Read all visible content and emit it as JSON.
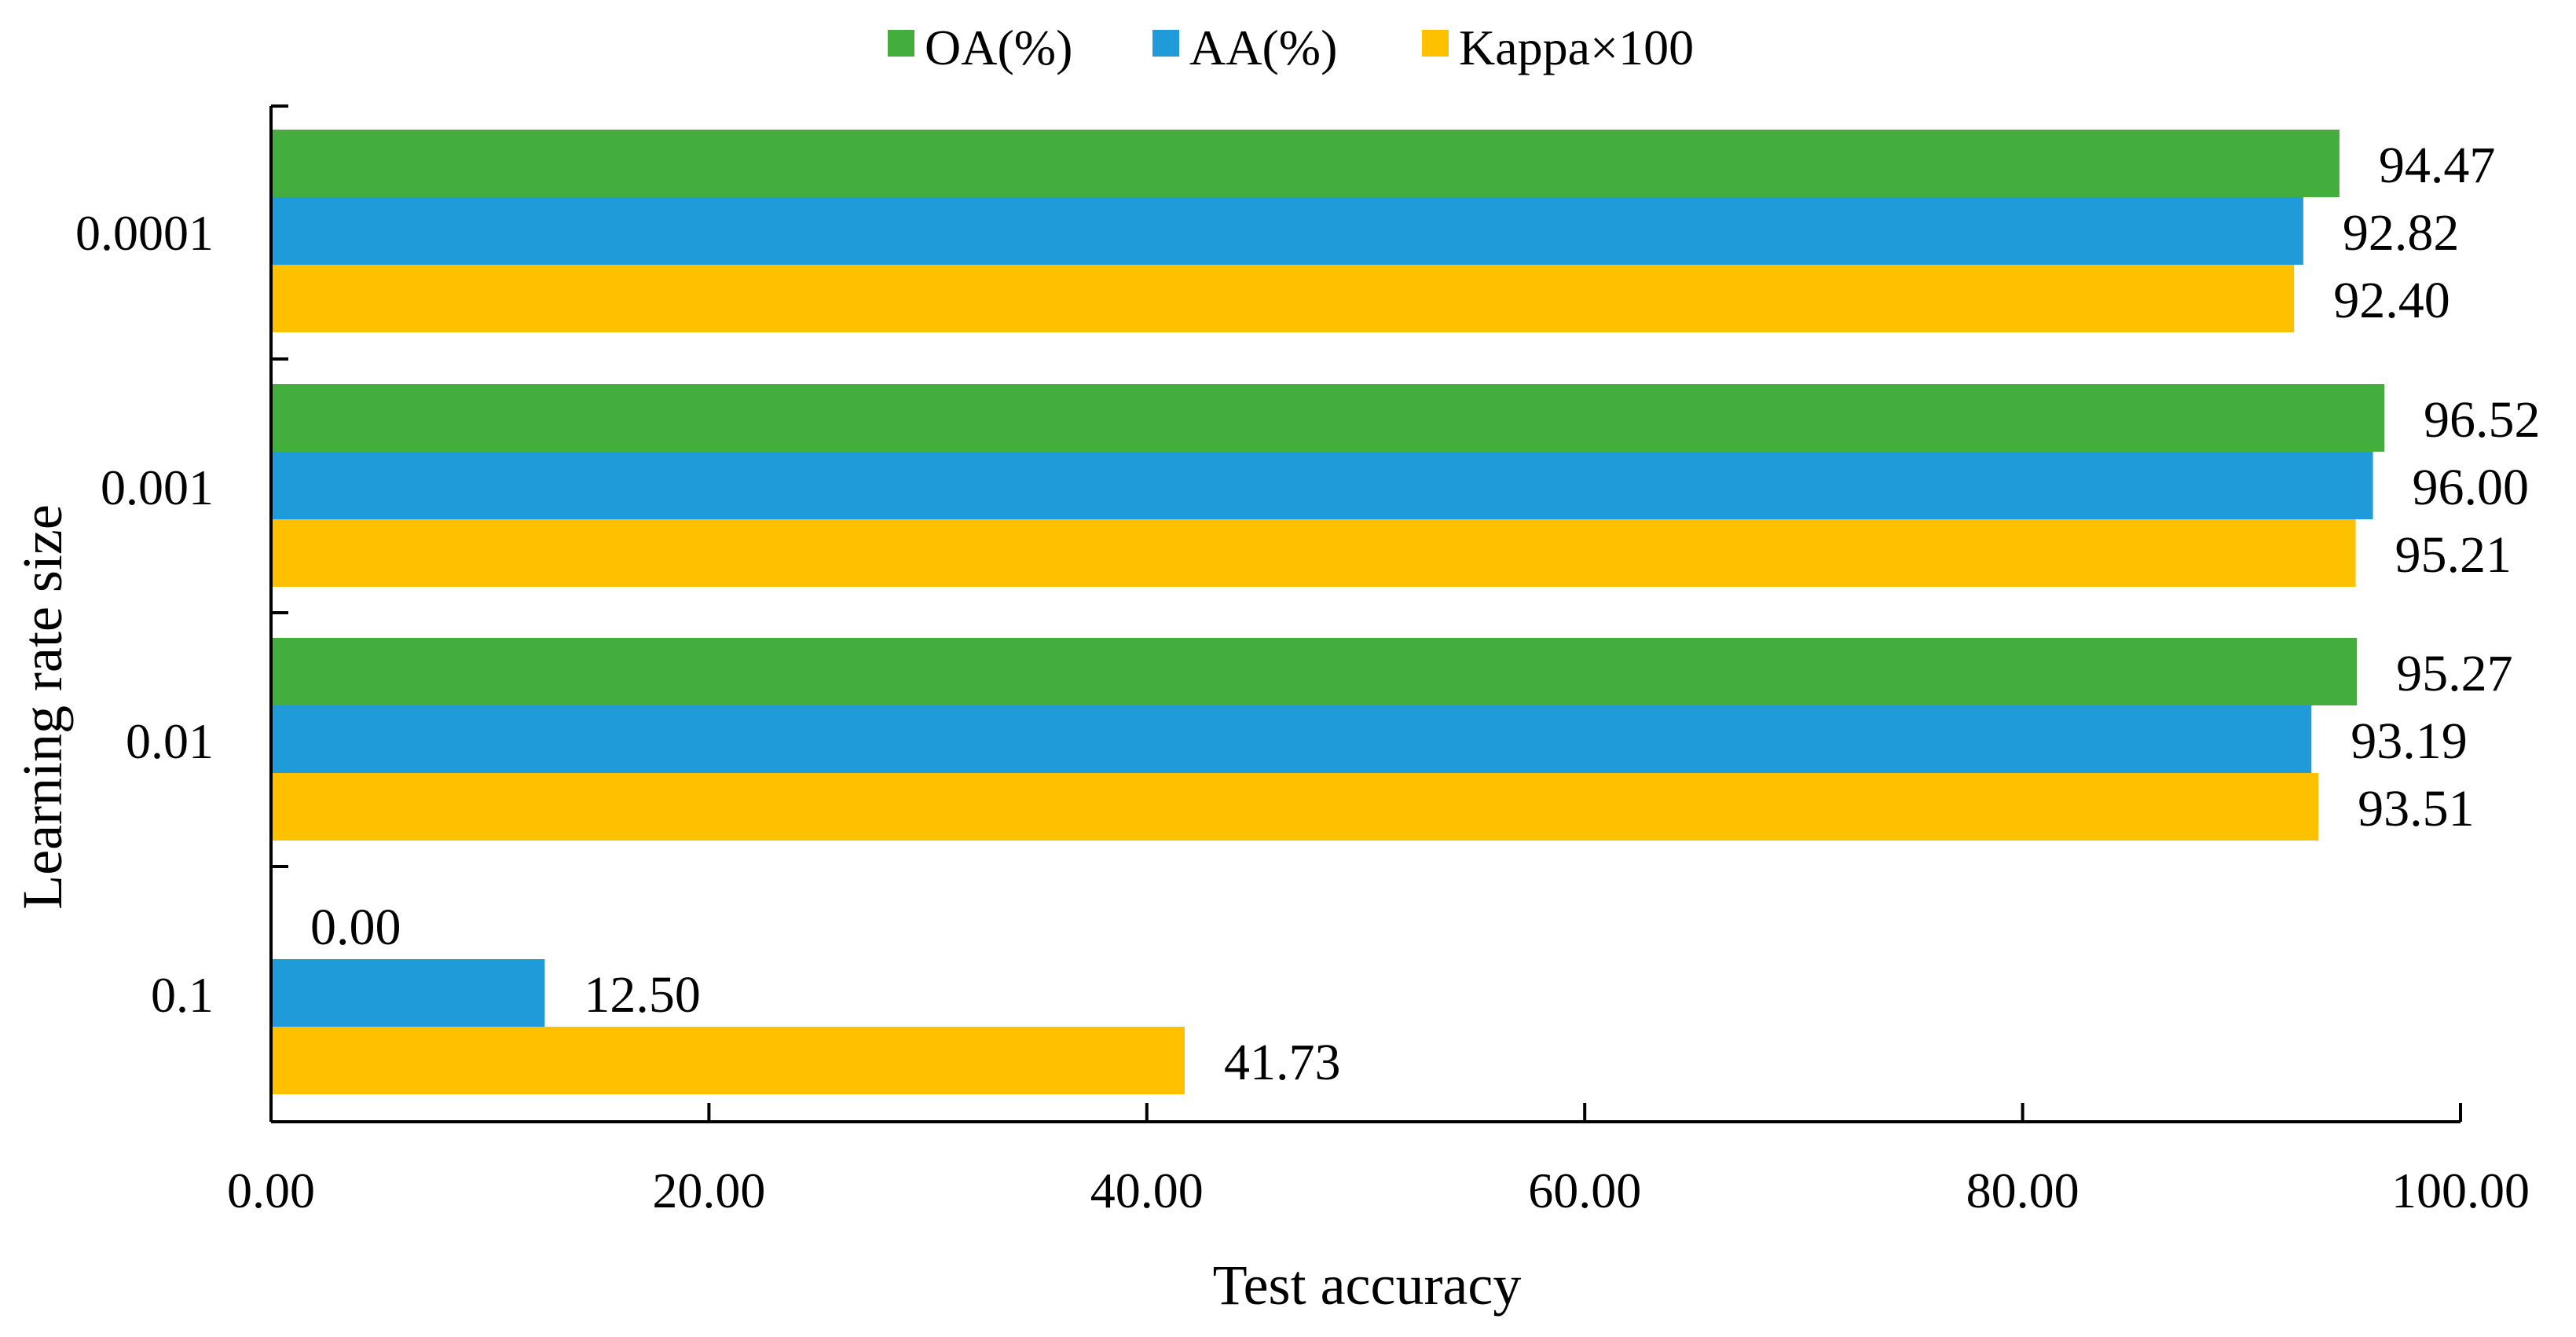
{
  "chart_data": {
    "type": "bar",
    "orientation": "horizontal",
    "categories": [
      "0.0001",
      "0.001",
      "0.01",
      "0.1"
    ],
    "series": [
      {
        "name": "OA(%)",
        "color": "#43AE3E",
        "values": [
          94.47,
          96.52,
          95.27,
          0.0
        ],
        "labels": [
          "94.47",
          "96.52",
          "95.27",
          "0.00"
        ]
      },
      {
        "name": "AA(%)",
        "color": "#1F9BD9",
        "values": [
          92.82,
          96.0,
          93.19,
          12.5
        ],
        "labels": [
          "92.82",
          "96.00",
          "93.19",
          "12.50"
        ]
      },
      {
        "name": "Kappa×100",
        "color": "#FFC000",
        "values": [
          92.4,
          95.21,
          93.51,
          41.73
        ],
        "labels": [
          "92.40",
          "95.21",
          "93.51",
          "41.73"
        ]
      }
    ],
    "xlabel": "Test accuracy",
    "ylabel": "Learning rate size",
    "xlim": [
      0,
      100
    ],
    "xticks": [
      0,
      20,
      40,
      60,
      80,
      100
    ],
    "xtick_labels": [
      "0.00",
      "20.00",
      "40.00",
      "60.00",
      "80.00",
      "100.00"
    ],
    "legend_position": "top-center",
    "grid": false
  }
}
